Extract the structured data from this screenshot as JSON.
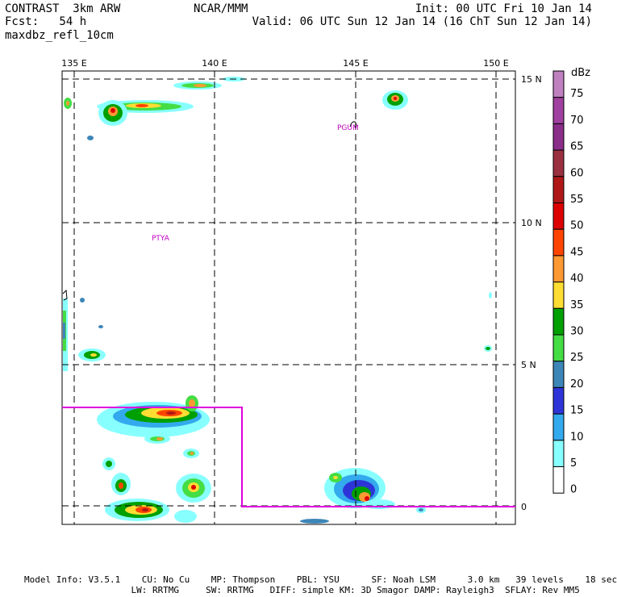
{
  "header": {
    "left_line1": "CONTRAST  3km ARW",
    "left_line2": "Fcst:   54 h",
    "left_line3": "maxdbz_refl_10cm",
    "center": "NCAR/MMM",
    "right_line1": "Init: 00 UTC Fri 10 Jan 14",
    "right_line2": "Valid: 06 UTC Sun 12 Jan 14 (16 ChT Sun 12 Jan 14)"
  },
  "map": {
    "lon_labels": [
      "135 E",
      "140 E",
      "145 E",
      "150 E"
    ],
    "lat_labels": [
      "15 N",
      "10 N",
      "5 N",
      "0"
    ],
    "stations": [
      {
        "name": "PGUM"
      },
      {
        "name": "PTYA"
      }
    ],
    "box_color": "#e000e0"
  },
  "colorbar": {
    "unit": "dBz",
    "levels": [
      "75",
      "70",
      "65",
      "60",
      "55",
      "50",
      "45",
      "40",
      "35",
      "30",
      "25",
      "20",
      "15",
      "10",
      "5",
      "0"
    ],
    "colors": [
      "#c080c0",
      "#a040a0",
      "#8a2e8a",
      "#9a3040",
      "#b01818",
      "#dd0000",
      "#ff4400",
      "#ff9933",
      "#ffdd33",
      "#00a000",
      "#44dd44",
      "#3d86b8",
      "#2e35d8",
      "#33aaee",
      "#88ffff",
      "#ffffff"
    ]
  },
  "footer": {
    "line1": "Model Info: V3.5.1    CU: No Cu    MP: Thompson    PBL: YSU      SF: Noah LSM      3.0 km   39 levels    18 sec",
    "line2": "                    LW: RRTMG     SW: RRTMG   DIFF: simple KM: 3D Smagor DAMP: Rayleigh3  SFLAY: Rev MM5"
  }
}
